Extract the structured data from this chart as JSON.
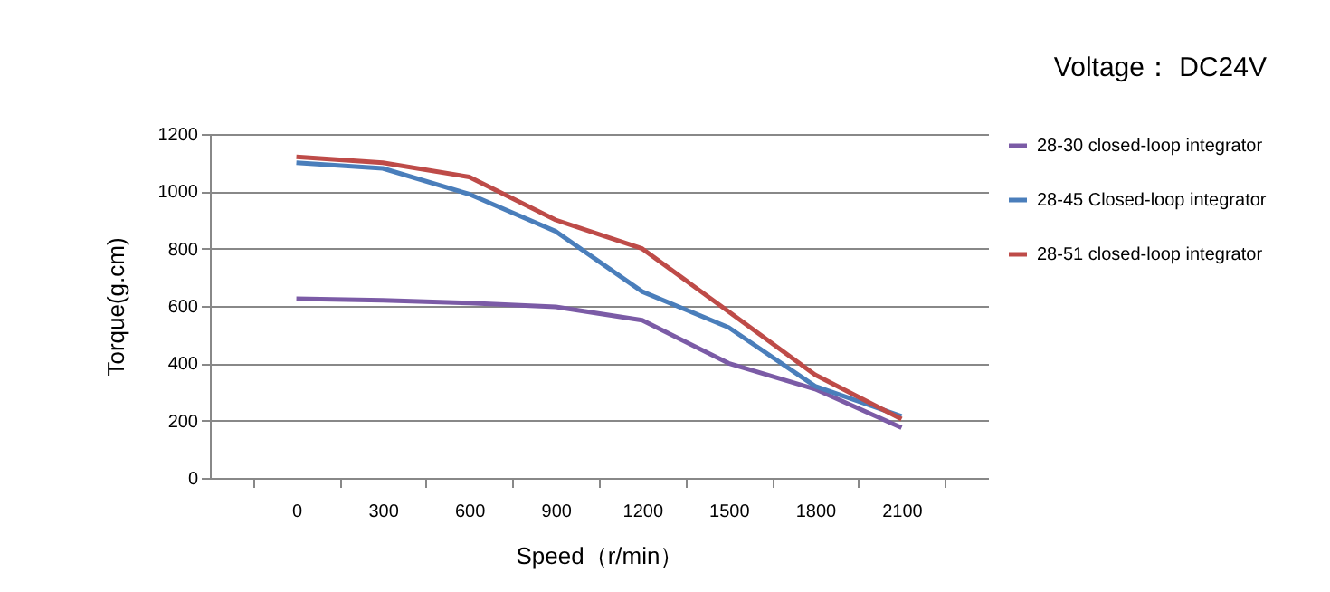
{
  "chart_data": {
    "type": "line",
    "title": "Voltage： DC24V",
    "xlabel": "Speed（r/min）",
    "ylabel": "Torque(g.cm)",
    "categories": [
      "0",
      "300",
      "600",
      "900",
      "1200",
      "1500",
      "1800",
      "2100"
    ],
    "series": [
      {
        "name": "28-30 closed-loop integrator",
        "color": "#7b5ba6",
        "values": [
          625,
          620,
          610,
          597,
          550,
          400,
          310,
          175
        ]
      },
      {
        "name": "28-45 Closed-loop integrator",
        "color": "#4a7ebb",
        "values": [
          1100,
          1080,
          990,
          860,
          650,
          525,
          320,
          215
        ]
      },
      {
        "name": "28-51 closed-loop integrator",
        "color": "#be4b48",
        "values": [
          1120,
          1100,
          1050,
          900,
          800,
          580,
          360,
          205
        ]
      }
    ],
    "ylim": [
      0,
      1200
    ],
    "yticks": [
      0,
      200,
      400,
      600,
      800,
      1000,
      1200
    ],
    "grid": "y",
    "legend": "right",
    "marker": "none",
    "line_style": "solid"
  }
}
